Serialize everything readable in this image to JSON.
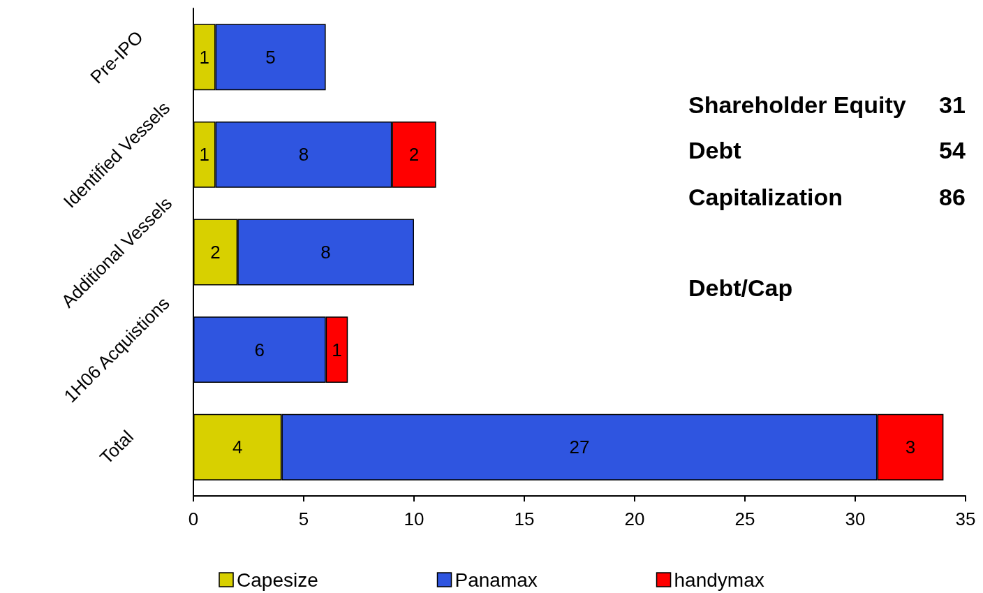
{
  "chart_data": {
    "type": "bar",
    "orientation": "horizontal",
    "stacked": true,
    "data_labels": true,
    "categories": [
      "Pre-IPO",
      "Identified Vessels",
      "Additional Vessels",
      "1H06 Acquistions",
      "Total"
    ],
    "series": [
      {
        "name": "Capesize",
        "color": "#d8d000",
        "values": [
          1,
          1,
          2,
          null,
          4
        ]
      },
      {
        "name": "Panamax",
        "color": "#2f55e0",
        "values": [
          5,
          8,
          8,
          6,
          27
        ]
      },
      {
        "name": "handymax",
        "color": "#ff0000",
        "values": [
          null,
          2,
          null,
          1,
          3
        ]
      }
    ],
    "xlim": [
      0,
      35
    ],
    "xticks": [
      0,
      5,
      10,
      15,
      20,
      25,
      30,
      35
    ],
    "grid": false,
    "legend": "bottom",
    "annotations": [
      "Shareholder Equity",
      "31",
      "Debt",
      "54",
      "Capitalization",
      "86",
      "Debt/Cap"
    ]
  }
}
